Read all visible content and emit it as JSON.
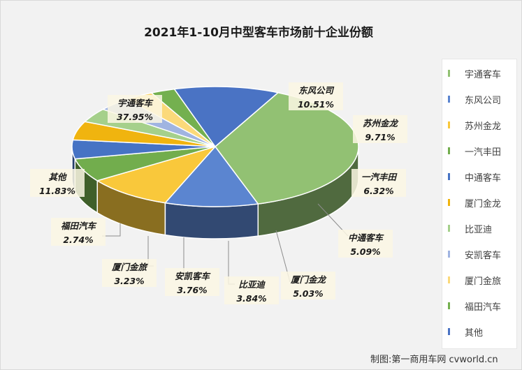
{
  "chart_data": {
    "type": "pie",
    "title": "2021年1-10月中型客车市场前十企业份额",
    "categories": [
      "宇通客车",
      "东风公司",
      "苏州金龙",
      "一汽丰田",
      "中通客车",
      "厦门金龙",
      "比亚迪",
      "安凯客车",
      "厦门金旅",
      "福田汽车",
      "其他"
    ],
    "values": [
      37.95,
      10.51,
      9.71,
      6.32,
      5.09,
      5.03,
      3.84,
      3.76,
      3.23,
      2.74,
      11.83
    ],
    "value_labels": [
      "37.95%",
      "10.51%",
      "9.71%",
      "6.32%",
      "5.09%",
      "5.03%",
      "3.84%",
      "3.76%",
      "3.23%",
      "2.74%",
      "11.83%"
    ],
    "colors": [
      "#92c173",
      "#5b85d0",
      "#f9c83b",
      "#72ad4d",
      "#4673c4",
      "#f0b40f",
      "#a5d08b",
      "#a0b4e1",
      "#fbd97a",
      "#74b04f",
      "#4a73c4"
    ],
    "legend_position": "right",
    "three_d": true
  },
  "credit": "制图:第一商用车网 cvworld.cn"
}
